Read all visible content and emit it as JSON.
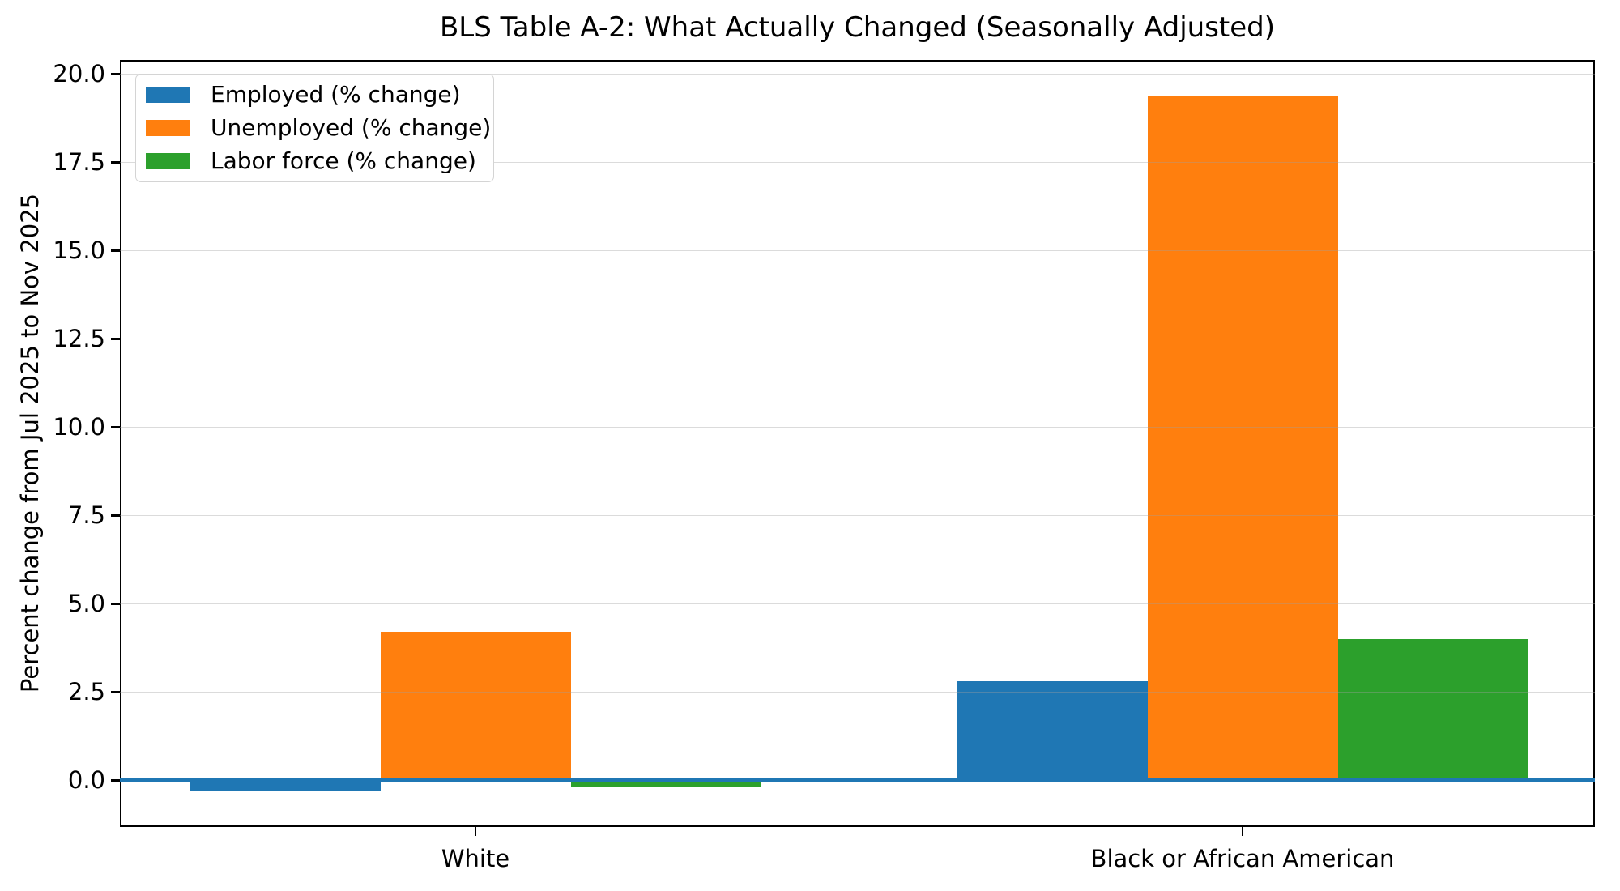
{
  "chart_data": {
    "type": "bar",
    "title": "BLS Table A-2: What Actually Changed (Seasonally Adjusted)",
    "ylabel": "Percent change from Jul 2025 to Nov 2025",
    "xlabel": "",
    "categories": [
      "White",
      "Black or African American"
    ],
    "series": [
      {
        "name": "Employed (% change)",
        "color": "#1f77b4",
        "values": [
          -0.3,
          2.8
        ]
      },
      {
        "name": "Unemployed (% change)",
        "color": "#ff7f0e",
        "values": [
          4.2,
          19.4
        ]
      },
      {
        "name": "Labor force (% change)",
        "color": "#2ca02c",
        "values": [
          -0.2,
          4.0
        ]
      }
    ],
    "ytick_labels": [
      "0.0",
      "2.5",
      "5.0",
      "7.5",
      "10.0",
      "12.5",
      "15.0",
      "17.5",
      "20.0"
    ],
    "ytick_values": [
      0,
      2.5,
      5,
      7.5,
      10,
      12.5,
      15,
      17.5,
      20
    ],
    "ylim": [
      -1.32,
      20.4
    ],
    "grid": "horizontal",
    "legend_position": "upper-left",
    "zero_line_color": "#1f77b4",
    "background_color": "#ffffff",
    "text_color": "#000000"
  }
}
